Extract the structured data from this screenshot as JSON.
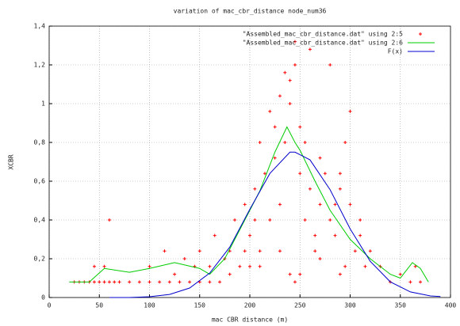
{
  "chart_data": {
    "type": "scatter",
    "title": "variation of mac_cbr_distance node_num36",
    "x_label": "mac CBR distance (m)",
    "y_label": "XCBR",
    "xlim": [
      0,
      400
    ],
    "xticks": [
      0,
      50,
      100,
      150,
      200,
      250,
      300,
      350,
      400
    ],
    "ylim": [
      0,
      1.4
    ],
    "yticks": [
      0,
      {
        "value": 0.2,
        "label": "0,2"
      },
      {
        "value": 0.4,
        "label": "0,4"
      },
      {
        "value": 0.6,
        "label": "0,6"
      },
      {
        "value": 0.8,
        "label": "0,8"
      },
      1,
      {
        "value": 1.2,
        "label": "1,2"
      },
      {
        "value": 1.4,
        "label": "1,4"
      }
    ],
    "grid": true,
    "legend": "top-right",
    "series": [
      {
        "name": "\"Assembled_mac_cbr_distance.dat\" using 2:5",
        "type": "scatter",
        "color": "#ff0000",
        "x": [
          25,
          30,
          35,
          40,
          45,
          50,
          55,
          60,
          65,
          70,
          80,
          90,
          100,
          110,
          120,
          130,
          140,
          150,
          45,
          55,
          60,
          100,
          115,
          125,
          135,
          145,
          150,
          160,
          165,
          170,
          175,
          180,
          185,
          190,
          195,
          200,
          205,
          210,
          215,
          220,
          225,
          230,
          235,
          240,
          245,
          250,
          255,
          260,
          265,
          270,
          275,
          280,
          285,
          290,
          295,
          300,
          305,
          310,
          315,
          320,
          330,
          340,
          350,
          360,
          365,
          370,
          160,
          180,
          200,
          210,
          220,
          230,
          240,
          250,
          260,
          270,
          280,
          290,
          300,
          195,
          205,
          225,
          235,
          245,
          255,
          265,
          285,
          295,
          210,
          230,
          250,
          270,
          290,
          310,
          240,
          245
        ],
        "values": [
          0.08,
          0.08,
          0.08,
          0.08,
          0.08,
          0.08,
          0.08,
          0.08,
          0.08,
          0.08,
          0.08,
          0.08,
          0.08,
          0.08,
          0.08,
          0.08,
          0.08,
          0.08,
          0.16,
          0.16,
          0.4,
          0.16,
          0.24,
          0.12,
          0.2,
          0.16,
          0.24,
          0.16,
          0.32,
          0.08,
          0.2,
          0.24,
          0.4,
          0.16,
          0.48,
          0.32,
          0.56,
          0.24,
          0.64,
          0.4,
          0.72,
          0.48,
          0.8,
          1.0,
          1.2,
          0.64,
          0.4,
          0.56,
          0.24,
          0.48,
          0.64,
          0.4,
          0.32,
          0.56,
          0.16,
          0.48,
          0.24,
          0.32,
          0.16,
          0.24,
          0.16,
          0.08,
          0.12,
          0.08,
          0.16,
          0.08,
          0.08,
          0.12,
          0.16,
          0.8,
          0.96,
          1.04,
          1.12,
          0.88,
          1.28,
          0.72,
          1.2,
          0.64,
          0.96,
          0.24,
          0.4,
          0.88,
          1.16,
          1.32,
          0.8,
          0.32,
          0.48,
          0.8,
          0.16,
          0.24,
          0.12,
          0.2,
          0.12,
          0.4,
          0.12,
          0.08
        ]
      },
      {
        "name": "\"Assembled_mac_cbr_distance.dat\" using 2:6",
        "type": "line",
        "color": "#00cc00",
        "x": [
          20,
          40,
          55,
          80,
          100,
          125,
          150,
          160,
          175,
          190,
          210,
          225,
          237,
          245,
          250,
          265,
          280,
          300,
          320,
          340,
          350,
          362,
          370,
          378
        ],
        "values": [
          0.08,
          0.08,
          0.15,
          0.13,
          0.15,
          0.18,
          0.15,
          0.12,
          0.2,
          0.35,
          0.55,
          0.75,
          0.88,
          0.8,
          0.76,
          0.6,
          0.45,
          0.3,
          0.2,
          0.12,
          0.1,
          0.18,
          0.15,
          0.08
        ]
      },
      {
        "name": "F(x)",
        "type": "line",
        "color": "#0000cc",
        "x": [
          60,
          80,
          100,
          120,
          140,
          160,
          180,
          200,
          220,
          240,
          245,
          260,
          280,
          300,
          320,
          340,
          360,
          380,
          390
        ],
        "values": [
          0,
          0,
          0.004,
          0.016,
          0.049,
          0.126,
          0.26,
          0.455,
          0.64,
          0.75,
          0.75,
          0.71,
          0.556,
          0.354,
          0.187,
          0.081,
          0.029,
          0.008,
          0.005
        ]
      }
    ]
  }
}
